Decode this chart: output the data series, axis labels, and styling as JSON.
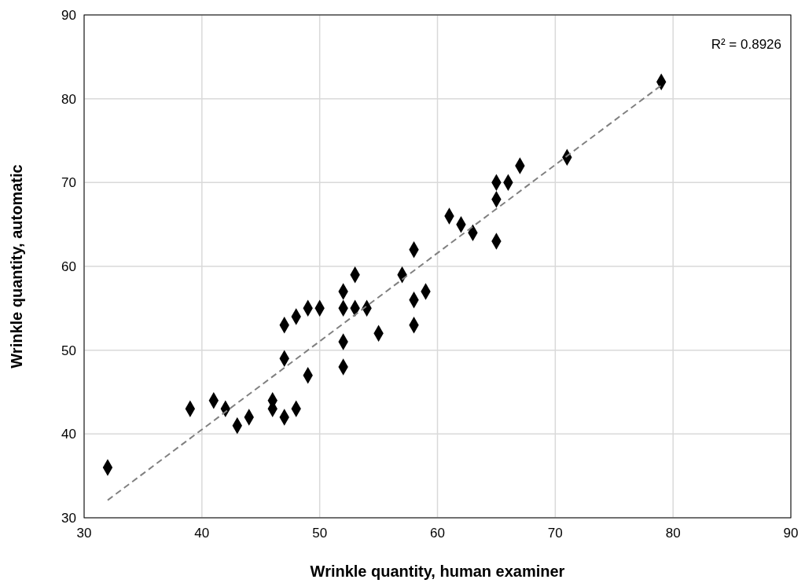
{
  "chart_data": {
    "type": "scatter",
    "xlabel": "Wrinkle quantity, human examiner",
    "ylabel": "Wrinkle quantity, automatic",
    "annotations": [
      "R² = 0.8926"
    ],
    "xlim": [
      30,
      90
    ],
    "xticks": [
      30,
      40,
      50,
      60,
      70,
      80,
      90
    ],
    "ylim": [
      30,
      90
    ],
    "yticks": [
      30,
      40,
      50,
      60,
      70,
      80,
      90
    ],
    "grid": true,
    "series": [
      {
        "color": "#000000",
        "marker": "diamond",
        "x": [
          32,
          39,
          41,
          42,
          43,
          44,
          46,
          46,
          47,
          47,
          47,
          48,
          48,
          49,
          49,
          50,
          52,
          52,
          52,
          52,
          53,
          53,
          54,
          55,
          57,
          58,
          58,
          58,
          59,
          61,
          62,
          63,
          65,
          65,
          65,
          66,
          67,
          71,
          79
        ],
        "values": [
          36,
          43,
          44,
          43,
          41,
          42,
          44,
          43,
          42,
          49,
          53,
          54,
          43,
          55,
          47,
          55,
          57,
          55,
          51,
          48,
          59,
          55,
          55,
          52,
          59,
          62,
          56,
          53,
          57,
          66,
          65,
          64,
          70,
          68,
          63,
          70,
          72,
          73,
          82
        ]
      },
      {
        "type": "line",
        "color": "#808080",
        "line_style": "dashed",
        "marker": "none",
        "x": [
          32,
          79
        ],
        "values": [
          32.1,
          81.6
        ]
      }
    ]
  }
}
